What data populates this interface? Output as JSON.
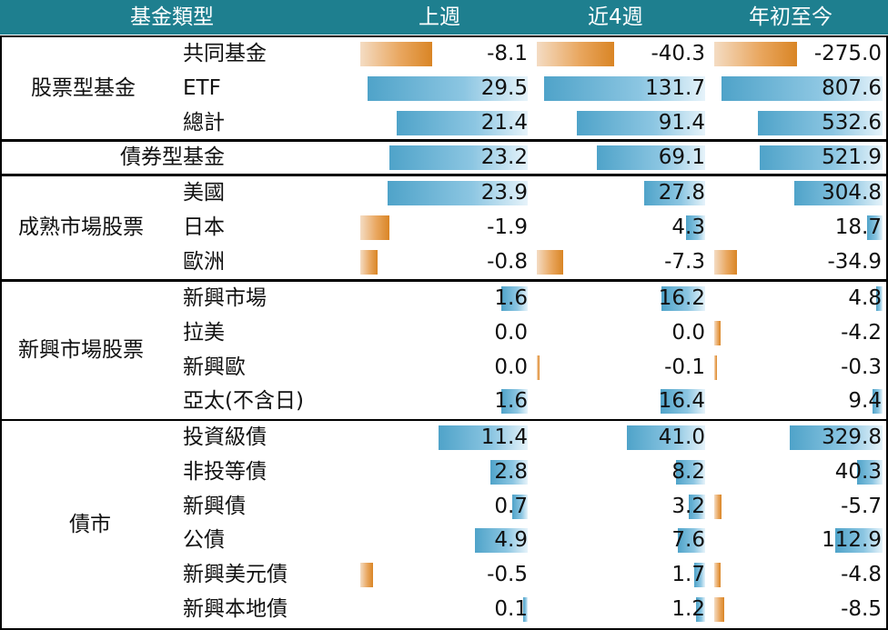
{
  "header": {
    "fund_type": "基金類型",
    "week": "上週",
    "four_weeks": "近4週",
    "ytd": "年初至今"
  },
  "colors": {
    "header_bg": "#1e7f8f",
    "positive_bar": "#4fa3c9",
    "negative_bar": "#e09a4a"
  },
  "groups": [
    {
      "label": "股票型基金",
      "rows": [
        {
          "name": "共同基金",
          "week": "-8.1",
          "four_weeks": "-40.3",
          "ytd": "-275.0"
        },
        {
          "name": "ETF",
          "week": "29.5",
          "four_weeks": "131.7",
          "ytd": "807.6"
        },
        {
          "name": "總計",
          "week": "21.4",
          "four_weeks": "91.4",
          "ytd": "532.6"
        }
      ]
    },
    {
      "label": "債券型基金",
      "rows": [
        {
          "name": "",
          "week": "23.2",
          "four_weeks": "69.1",
          "ytd": "521.9"
        }
      ]
    },
    {
      "label": "成熟市場股票",
      "rows": [
        {
          "name": "美國",
          "week": "23.9",
          "four_weeks": "27.8",
          "ytd": "304.8"
        },
        {
          "name": "日本",
          "week": "-1.9",
          "four_weeks": "4.3",
          "ytd": "18.7"
        },
        {
          "name": "歐洲",
          "week": "-0.8",
          "four_weeks": "-7.3",
          "ytd": "-34.9"
        }
      ]
    },
    {
      "label": "新興市場股票",
      "rows": [
        {
          "name": "新興市場",
          "week": "1.6",
          "four_weeks": "16.2",
          "ytd": "4.8"
        },
        {
          "name": "拉美",
          "week": "0.0",
          "four_weeks": "0.0",
          "ytd": "-4.2"
        },
        {
          "name": "新興歐",
          "week": "0.0",
          "four_weeks": "-0.1",
          "ytd": "-0.3"
        },
        {
          "name": "亞太(不含日)",
          "week": "1.6",
          "four_weeks": "16.4",
          "ytd": "9.4"
        }
      ]
    },
    {
      "label": "債市",
      "rows": [
        {
          "name": "投資級債",
          "week": "11.4",
          "four_weeks": "41.0",
          "ytd": "329.8"
        },
        {
          "name": "非投等債",
          "week": "2.8",
          "four_weeks": "8.2",
          "ytd": "40.3"
        },
        {
          "name": "新興債",
          "week": "0.7",
          "four_weeks": "3.2",
          "ytd": "-5.7"
        },
        {
          "name": "公債",
          "week": "4.9",
          "four_weeks": "7.6",
          "ytd": "112.9"
        },
        {
          "name": "新興美元債",
          "week": "-0.5",
          "four_weeks": "1.7",
          "ytd": "-4.8"
        },
        {
          "name": "新興本地債",
          "week": "0.1",
          "four_weeks": "1.2",
          "ytd": "-8.5"
        }
      ]
    }
  ]
}
